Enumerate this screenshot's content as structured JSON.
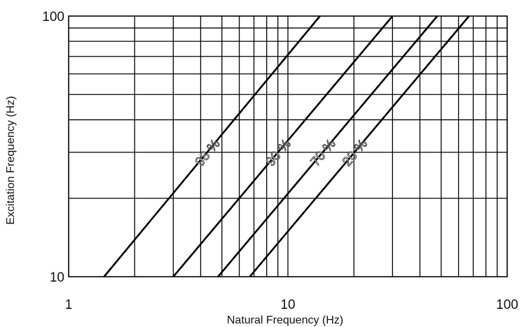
{
  "chart_data": {
    "type": "line",
    "title": "",
    "xlabel": "Natural Frequency (Hz)",
    "ylabel": "Excitation Frequency (Hz)",
    "xscale": "log",
    "yscale": "log",
    "xlim": [
      1,
      100
    ],
    "ylim": [
      10,
      100
    ],
    "xticks": [
      1,
      10,
      100
    ],
    "xtick_labels": [
      "1",
      "10",
      "100"
    ],
    "yticks": [
      10,
      100
    ],
    "ytick_labels": [
      "10",
      "100"
    ],
    "grid": true,
    "legend": "none",
    "series": [
      {
        "name": "98 %",
        "x": [
          1.45,
          14.0
        ],
        "y": [
          10,
          100
        ]
      },
      {
        "name": "90 %",
        "x": [
          3.0,
          30.0
        ],
        "y": [
          10,
          100
        ]
      },
      {
        "name": "70 %",
        "x": [
          4.8,
          48.0
        ],
        "y": [
          10,
          100
        ]
      },
      {
        "name": "20 %",
        "x": [
          6.7,
          67.0
        ],
        "y": [
          10,
          100
        ]
      }
    ]
  }
}
